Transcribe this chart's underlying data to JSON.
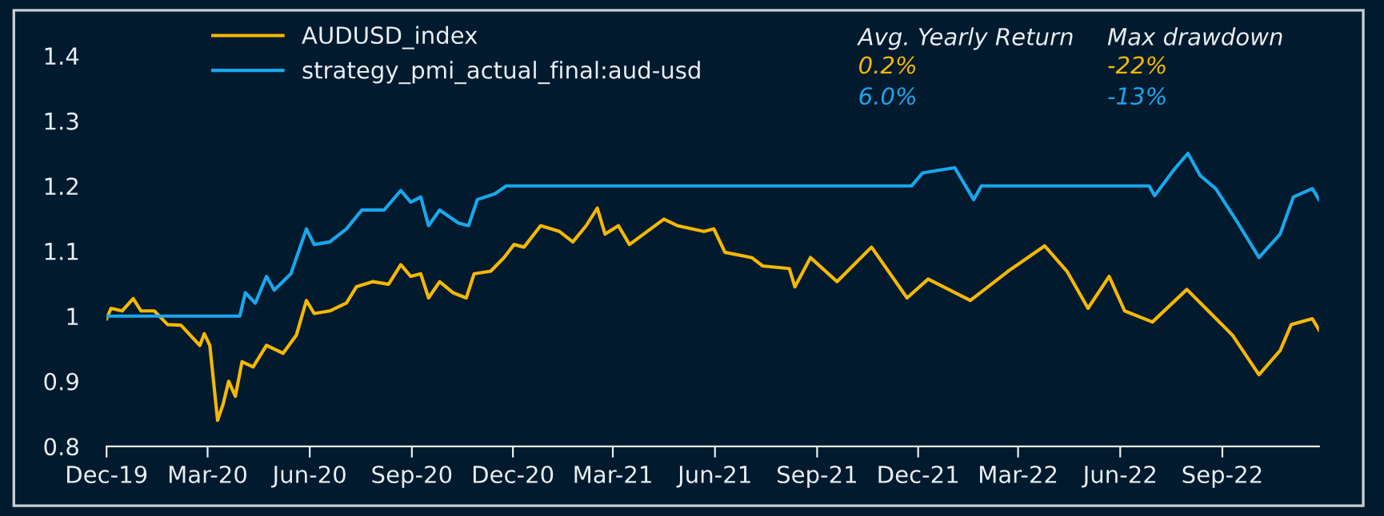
{
  "chart_data": {
    "type": "line",
    "xlim": [
      "2019-12-01",
      "2022-11-27"
    ],
    "xticks": [
      {
        "value": "2019-12-01",
        "label": "Dec-19"
      },
      {
        "value": "2020-03-01",
        "label": "Mar-20"
      },
      {
        "value": "2020-06-01",
        "label": "Jun-20"
      },
      {
        "value": "2020-09-01",
        "label": "Sep-20"
      },
      {
        "value": "2020-12-01",
        "label": "Dec-20"
      },
      {
        "value": "2021-03-01",
        "label": "Mar-21"
      },
      {
        "value": "2021-06-01",
        "label": "Jun-21"
      },
      {
        "value": "2021-09-01",
        "label": "Sep-21"
      },
      {
        "value": "2021-12-01",
        "label": "Dec-21"
      },
      {
        "value": "2022-03-01",
        "label": "Mar-22"
      },
      {
        "value": "2022-06-01",
        "label": "Jun-22"
      },
      {
        "value": "2022-09-01",
        "label": "Sep-22"
      }
    ],
    "ylim": [
      0.8,
      1.4
    ],
    "yticks": [
      0.8,
      0.9,
      {
        "value": 1.0,
        "label": "1"
      },
      1.1,
      1.2,
      1.3,
      1.4
    ],
    "grid": false,
    "legend": "top left",
    "line_style": "solid",
    "marker": "none",
    "annotations": [
      "Avg. Yearly Return",
      "Max drawdown",
      "0.2%",
      "-22%",
      "6.0%",
      "-13%"
    ],
    "series": [
      {
        "name": "AUDUSD_index",
        "color": "#f5b800",
        "x": [
          "2019-12-01",
          "2019-12-05",
          "2019-12-15",
          "2019-12-25",
          "2020-01-01",
          "2020-01-13",
          "2020-01-25",
          "2020-02-06",
          "2020-02-23",
          "2020-02-27",
          "2020-03-03",
          "2020-03-10",
          "2020-03-15",
          "2020-03-20",
          "2020-03-26",
          "2020-04-01",
          "2020-04-11",
          "2020-04-23",
          "2020-05-08",
          "2020-05-20",
          "2020-05-29",
          "2020-06-05",
          "2020-06-19",
          "2020-07-04",
          "2020-07-13",
          "2020-07-28",
          "2020-08-11",
          "2020-08-22",
          "2020-08-31",
          "2020-09-09",
          "2020-09-16",
          "2020-09-26",
          "2020-10-08",
          "2020-10-20",
          "2020-10-27",
          "2020-11-11",
          "2020-11-23",
          "2020-12-02",
          "2020-12-11",
          "2020-12-26",
          "2021-01-12",
          "2021-01-24",
          "2021-02-05",
          "2021-02-15",
          "2021-02-22",
          "2021-03-06",
          "2021-03-16",
          "2021-04-04",
          "2021-04-16",
          "2021-04-28",
          "2021-05-22",
          "2021-05-31",
          "2021-06-10",
          "2021-07-04",
          "2021-07-14",
          "2021-08-07",
          "2021-08-12",
          "2021-08-26",
          "2021-09-19",
          "2021-10-20",
          "2021-11-21",
          "2021-12-10",
          "2022-01-17",
          "2022-02-20",
          "2022-03-25",
          "2022-04-14",
          "2022-05-03",
          "2022-05-22",
          "2022-06-05",
          "2022-06-30",
          "2022-07-31",
          "2022-08-17",
          "2022-09-10",
          "2022-10-04",
          "2022-10-23",
          "2022-11-02",
          "2022-11-21",
          "2022-11-27"
        ],
        "values": [
          0.996,
          1.012,
          1.008,
          1.027,
          1.008,
          1.008,
          0.987,
          0.986,
          0.955,
          0.973,
          0.955,
          0.84,
          0.865,
          0.9,
          0.877,
          0.93,
          0.922,
          0.955,
          0.943,
          0.971,
          1.024,
          1.004,
          1.008,
          1.02,
          1.045,
          1.053,
          1.049,
          1.079,
          1.061,
          1.065,
          1.028,
          1.053,
          1.036,
          1.028,
          1.065,
          1.069,
          1.09,
          1.11,
          1.106,
          1.139,
          1.13,
          1.114,
          1.139,
          1.166,
          1.126,
          1.139,
          1.11,
          1.134,
          1.149,
          1.139,
          1.13,
          1.134,
          1.098,
          1.09,
          1.077,
          1.073,
          1.045,
          1.09,
          1.053,
          1.106,
          1.028,
          1.057,
          1.024,
          1.069,
          1.108,
          1.069,
          1.012,
          1.061,
          1.008,
          0.991,
          1.041,
          1.012,
          0.971,
          0.91,
          0.947,
          0.987,
          0.996,
          0.979
        ]
      },
      {
        "name": "strategy_pmi_actual_final:aud-usd",
        "color": "#1aa7ec",
        "x": [
          "2019-12-01",
          "2020-03-30",
          "2020-04-04",
          "2020-04-13",
          "2020-04-23",
          "2020-04-30",
          "2020-05-15",
          "2020-05-29",
          "2020-06-05",
          "2020-06-19",
          "2020-07-04",
          "2020-07-18",
          "2020-08-07",
          "2020-08-22",
          "2020-08-31",
          "2020-09-09",
          "2020-09-16",
          "2020-09-26",
          "2020-10-13",
          "2020-10-22",
          "2020-10-30",
          "2020-11-15",
          "2020-11-25",
          "2021-11-25",
          "2021-12-05",
          "2021-12-19",
          "2022-01-03",
          "2022-01-20",
          "2022-01-27",
          "2022-06-27",
          "2022-07-02",
          "2022-07-19",
          "2022-08-01",
          "2022-08-12",
          "2022-08-26",
          "2022-09-15",
          "2022-10-04",
          "2022-10-23",
          "2022-11-04",
          "2022-11-21",
          "2022-11-27"
        ],
        "values": [
          1.0,
          1.0,
          1.036,
          1.02,
          1.061,
          1.04,
          1.065,
          1.134,
          1.11,
          1.114,
          1.134,
          1.163,
          1.163,
          1.193,
          1.175,
          1.183,
          1.139,
          1.163,
          1.143,
          1.139,
          1.179,
          1.188,
          1.2,
          1.2,
          1.22,
          1.224,
          1.228,
          1.179,
          1.2,
          1.2,
          1.185,
          1.224,
          1.25,
          1.216,
          1.196,
          1.143,
          1.09,
          1.126,
          1.183,
          1.196,
          1.179
        ]
      }
    ]
  }
}
